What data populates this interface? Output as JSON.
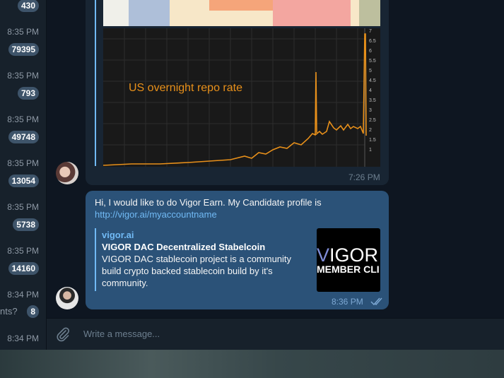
{
  "chat_list": {
    "rows": [
      {
        "time": "",
        "badge": "430"
      },
      {
        "time": "8:35 PM",
        "badge": "79395"
      },
      {
        "time": "8:35 PM",
        "badge": "793"
      },
      {
        "time": "8:35 PM",
        "badge": "49748"
      },
      {
        "time": "8:35 PM",
        "badge": "13054"
      },
      {
        "time": "8:35 PM",
        "badge": "5738"
      },
      {
        "time": "8:35 PM",
        "badge": "14160"
      },
      {
        "time": "8:34 PM",
        "badge": "8",
        "snippet": "nts?"
      },
      {
        "time": "8:34 PM",
        "badge": ""
      }
    ]
  },
  "messages": {
    "incoming": {
      "image_caption": "US overnight repo rate",
      "time": "7:26 PM",
      "axis_ticks": [
        "7",
        "6.5",
        "6",
        "5.5",
        "5",
        "4.5",
        "4",
        "3.5",
        "3",
        "2.5",
        "2",
        "1.5",
        "1"
      ]
    },
    "outgoing": {
      "text": "Hi, I would like to do Vigor Earn.  My Candidate profile is",
      "link": "http://vigor.ai/myaccountname",
      "preview": {
        "site": "vigor.ai",
        "title": "VIGOR DAC Decentralized Stabelcoin",
        "description": "VIGOR DAC stablecoin project is a community build crypto backed stablecoin build by it's community.",
        "thumb_line1_v": "V",
        "thumb_line1_rest": "IGOR",
        "thumb_line2": "MEMBER CLI"
      },
      "time": "8:36 PM",
      "status_icon": "double-check-icon"
    }
  },
  "composer": {
    "placeholder": "Write a message...",
    "attach_icon": "paperclip-icon"
  },
  "colors": {
    "background": "#0e1621",
    "outgoing_bubble": "#2b5278",
    "incoming_bubble": "#182533",
    "link": "#71baf5",
    "chart_line": "#e8901a"
  }
}
